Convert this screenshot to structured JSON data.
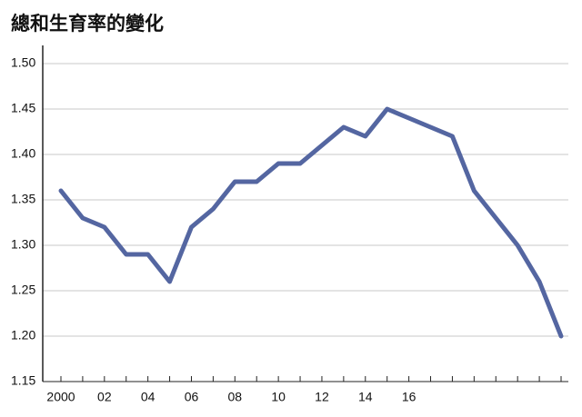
{
  "chart_data": {
    "type": "line",
    "title": "總和生育率的變化",
    "categories": [
      "2000",
      null,
      "02",
      null,
      "04",
      null,
      "06",
      null,
      "08",
      null,
      "10",
      null,
      "12",
      null,
      "14",
      null,
      "16",
      null,
      null,
      null,
      null,
      null,
      null,
      null
    ],
    "values": [
      1.36,
      1.33,
      1.32,
      1.29,
      1.29,
      1.26,
      1.32,
      1.34,
      1.37,
      1.37,
      1.39,
      1.39,
      1.41,
      1.43,
      1.42,
      1.45,
      1.44,
      1.43,
      1.42,
      1.36,
      1.33,
      1.3,
      1.26,
      1.2
    ],
    "color": "#5466a1",
    "ylim": [
      1.15,
      1.5
    ],
    "yticks": [
      1.15,
      {
        "value": 1.2,
        "label": "1.20"
      },
      1.25,
      {
        "value": 1.3,
        "label": "1.30"
      },
      1.35,
      {
        "value": 1.4,
        "label": "1.40"
      },
      1.45,
      {
        "value": 1.5,
        "label": "1.50"
      }
    ],
    "grid": true
  }
}
